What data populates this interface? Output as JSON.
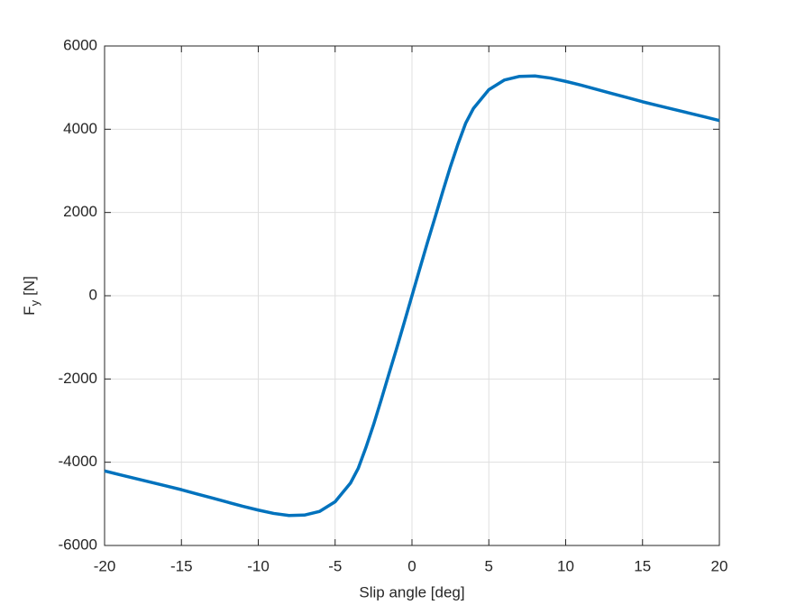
{
  "chart_data": {
    "type": "line",
    "xlabel": "Slip angle [deg]",
    "ylabel": "F",
    "ylabel_sub": "y",
    "ylabel_unit": "[N]",
    "x": [
      -20,
      -19,
      -18,
      -17,
      -16,
      -15,
      -14,
      -13,
      -12,
      -11,
      -10,
      -9,
      -8,
      -7,
      -6,
      -5,
      -4,
      -3.5,
      -3,
      -2.5,
      -2,
      -1.5,
      -1,
      -0.5,
      0,
      0.5,
      1,
      1.5,
      2,
      2.5,
      3,
      3.5,
      4,
      5,
      6,
      7,
      8,
      9,
      10,
      11,
      12,
      13,
      14,
      15,
      16,
      17,
      18,
      19,
      20
    ],
    "series": [
      {
        "name": "Fy",
        "color": "#0072bd",
        "values": [
          -4210,
          -4300,
          -4390,
          -4480,
          -4570,
          -4660,
          -4760,
          -4860,
          -4960,
          -5060,
          -5150,
          -5230,
          -5280,
          -5270,
          -5180,
          -4950,
          -4500,
          -4150,
          -3650,
          -3100,
          -2500,
          -1880,
          -1270,
          -640,
          0,
          640,
          1270,
          1880,
          2500,
          3100,
          3650,
          4150,
          4500,
          4950,
          5180,
          5270,
          5280,
          5230,
          5150,
          5060,
          4960,
          4860,
          4760,
          4660,
          4570,
          4480,
          4390,
          4300,
          4210
        ]
      }
    ],
    "xlim": [
      -20,
      20
    ],
    "xticks": [
      -20,
      -15,
      -10,
      -5,
      0,
      5,
      10,
      15,
      20
    ],
    "ylim": [
      -6000,
      6000
    ],
    "yticks": [
      -6000,
      -4000,
      -2000,
      0,
      2000,
      4000,
      6000
    ],
    "grid": true
  }
}
